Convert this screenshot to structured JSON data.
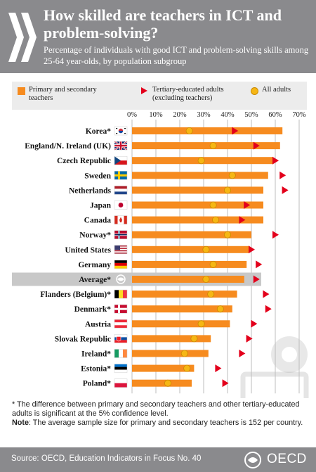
{
  "header": {
    "title": "How skilled are teachers in ICT and problem-solving?",
    "subtitle": "Percentage of individuals with good ICT and problem-solving skills among 25-64 year-olds, by population subgroup"
  },
  "legend": {
    "primary": "Primary and secondary teachers",
    "tertiary": "Tertiary-educated adults (excluding teachers)",
    "all": "All adults"
  },
  "footer": {
    "note1": "* The difference between primary and secondary teachers and other tertiary-educated adults is significant at the 5% confidence level.",
    "note_label": "Note",
    "note2": ": The average sample size for primary and secondary teachers is 152 per country.",
    "source": "Source: OECD, Education Indicators in Focus No. 40",
    "logo_text": "OECD"
  },
  "colors": {
    "header_bg": "#8a8a8d",
    "bar": "#f68b1f",
    "tertiary": "#e3001b",
    "all_adults": "#f6b614",
    "average_band": "#c8c8c8"
  },
  "chart_data": {
    "type": "bar",
    "orientation": "horizontal",
    "xlim": [
      0,
      70
    ],
    "ticks": [
      0,
      10,
      20,
      30,
      40,
      50,
      60,
      70
    ],
    "tick_labels": [
      "0%",
      "10%",
      "20%",
      "30%",
      "40%",
      "50%",
      "60%",
      "70%"
    ],
    "categories": [
      {
        "label": "Korea*",
        "flag": "korea",
        "primary": 63,
        "tertiary": 43,
        "all": 24
      },
      {
        "label": "England/N. Ireland (UK)",
        "flag": "uk",
        "primary": 62,
        "tertiary": 52,
        "all": 34
      },
      {
        "label": "Czech Republic",
        "flag": "czech",
        "primary": 59,
        "tertiary": 60,
        "all": 29
      },
      {
        "label": "Sweden",
        "flag": "sweden",
        "primary": 57,
        "tertiary": 63,
        "all": 42
      },
      {
        "label": "Netherlands",
        "flag": "netherlands",
        "primary": 55,
        "tertiary": 64,
        "all": 40
      },
      {
        "label": "Japan",
        "flag": "japan",
        "primary": 55,
        "tertiary": 48,
        "all": 34
      },
      {
        "label": "Canada",
        "flag": "canada",
        "primary": 55,
        "tertiary": 46,
        "all": 35
      },
      {
        "label": "Norway*",
        "flag": "norway",
        "primary": 50,
        "tertiary": 60,
        "all": 40
      },
      {
        "label": "United States",
        "flag": "usa",
        "primary": 49,
        "tertiary": 50,
        "all": 31
      },
      {
        "label": "Germany",
        "flag": "germany",
        "primary": 48,
        "tertiary": 53,
        "all": 34
      },
      {
        "label": "Average*",
        "flag": "oecd",
        "primary": 47,
        "tertiary": 52,
        "all": 31,
        "highlight": true
      },
      {
        "label": "Flanders (Belgium)*",
        "flag": "belgium",
        "primary": 44,
        "tertiary": 56,
        "all": 33
      },
      {
        "label": "Denmark*",
        "flag": "denmark",
        "primary": 42,
        "tertiary": 57,
        "all": 37
      },
      {
        "label": "Austria",
        "flag": "austria",
        "primary": 41,
        "tertiary": 51,
        "all": 29
      },
      {
        "label": "Slovak Republic",
        "flag": "slovakia",
        "primary": 33,
        "tertiary": 49,
        "all": 26
      },
      {
        "label": "Ireland*",
        "flag": "ireland",
        "primary": 32,
        "tertiary": 46,
        "all": 22
      },
      {
        "label": "Estonia*",
        "flag": "estonia",
        "primary": 26,
        "tertiary": 36,
        "all": 23
      },
      {
        "label": "Poland*",
        "flag": "poland",
        "primary": 25,
        "tertiary": 39,
        "all": 15
      }
    ]
  }
}
